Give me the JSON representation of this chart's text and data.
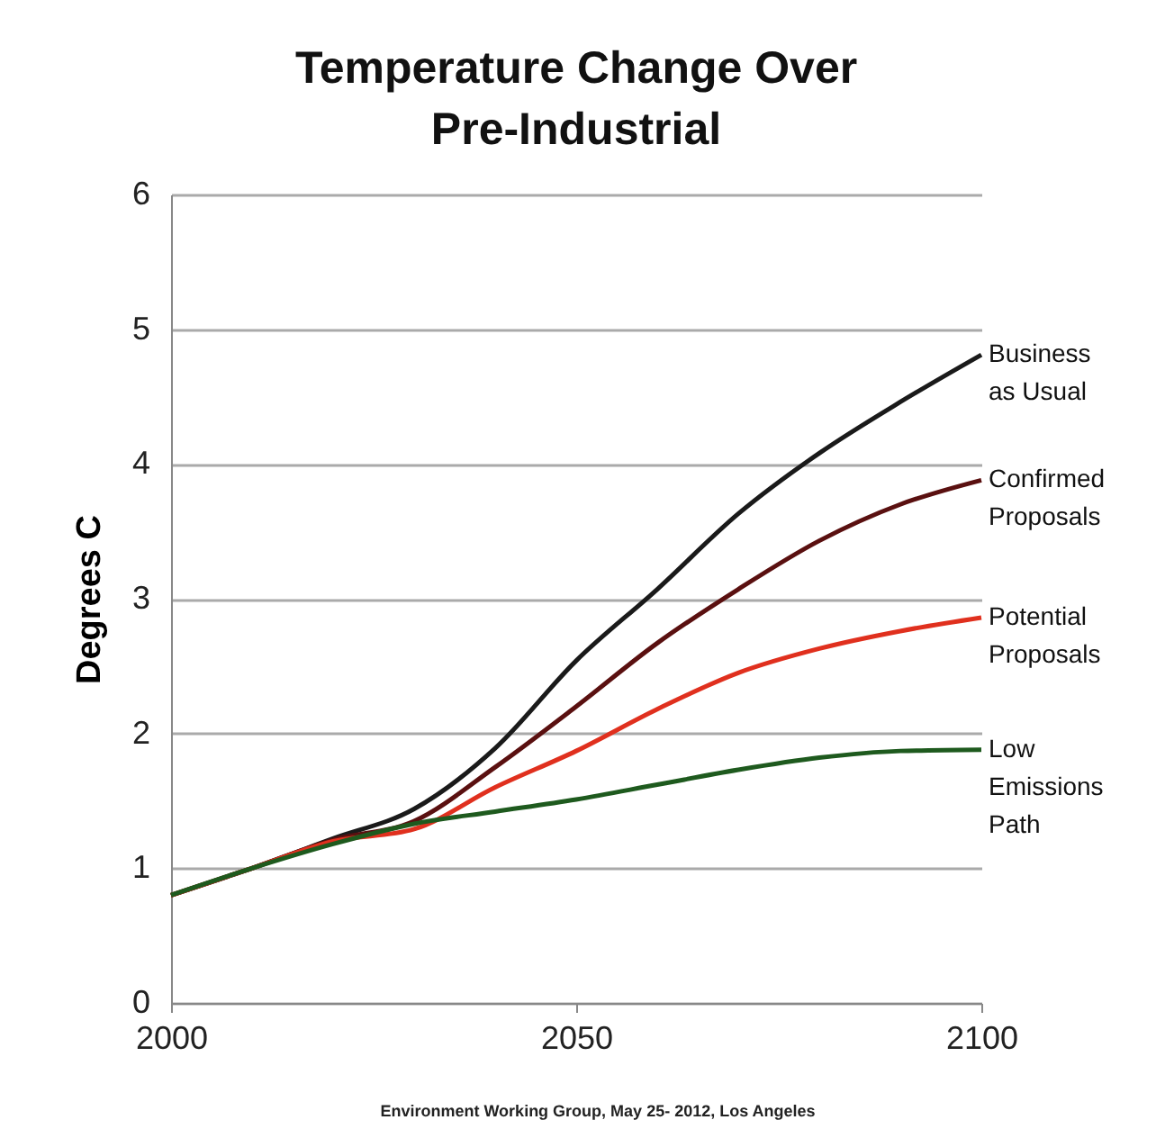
{
  "chart_data": {
    "type": "line",
    "title": "Temperature Change Over Pre-Industrial",
    "ylabel": "Degrees C",
    "x": [
      2000,
      2010,
      2020,
      2030,
      2040,
      2050,
      2060,
      2070,
      2080,
      2090,
      2100
    ],
    "series": [
      {
        "name": "Business as Usual",
        "color": "#1a1a1a",
        "values": [
          0.8,
          1.0,
          1.22,
          1.44,
          1.89,
          2.54,
          3.07,
          3.63,
          4.08,
          4.46,
          4.81
        ]
      },
      {
        "name": "Confirmed Proposals",
        "color": "#5a1010",
        "values": [
          0.8,
          1.0,
          1.21,
          1.35,
          1.75,
          2.2,
          2.67,
          3.07,
          3.43,
          3.7,
          3.88
        ]
      },
      {
        "name": "Potential Proposals",
        "color": "#e0301e",
        "values": [
          0.8,
          1.0,
          1.2,
          1.29,
          1.6,
          1.87,
          2.18,
          2.45,
          2.63,
          2.76,
          2.86
        ]
      },
      {
        "name": "Low Emissions Path",
        "color": "#1e5a1e",
        "values": [
          0.8,
          1.0,
          1.18,
          1.33,
          1.42,
          1.51,
          1.62,
          1.73,
          1.82,
          1.87,
          1.88
        ]
      }
    ],
    "xlim": [
      2000,
      2100
    ],
    "xticks": [
      2000,
      2050,
      2100
    ],
    "ylim": [
      0,
      6
    ],
    "yticks": [
      0,
      1,
      2,
      3,
      4,
      5,
      6
    ],
    "grid": "y",
    "legend": false,
    "annotations": [
      "Environment Working Group, May 25- 2012, Los Angeles"
    ]
  }
}
